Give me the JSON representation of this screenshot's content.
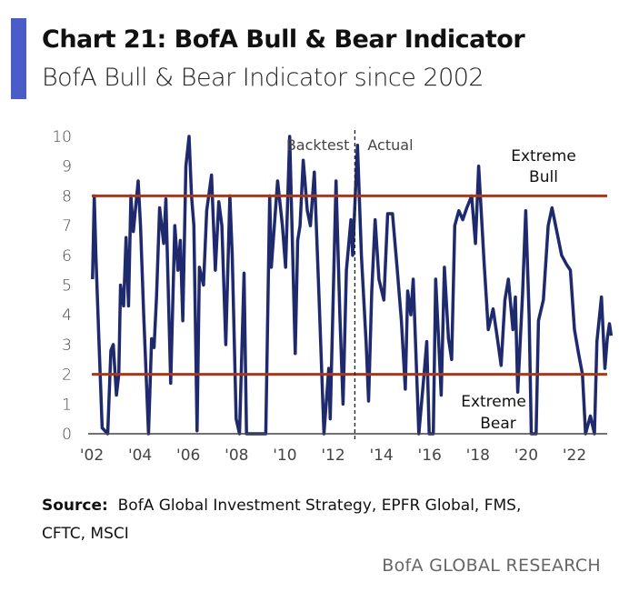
{
  "header": {
    "title": "Chart 21: BofA Bull & Bear Indicator",
    "subtitle": "BofA Bull & Bear Indicator since 2002"
  },
  "footer": {
    "source_label": "Source:",
    "source_text": "BofA Global Investment Strategy, EPFR Global, FMS, CFTC, MSCI",
    "brand": "BofA GLOBAL RESEARCH"
  },
  "chart_data": {
    "type": "line",
    "title": "",
    "xlabel": "",
    "ylabel": "",
    "ylim": [
      0,
      10
    ],
    "xlim": [
      2002,
      2023.6
    ],
    "yticks": [
      "0",
      "1",
      "2",
      "3",
      "4",
      "5",
      "6",
      "7",
      "8",
      "9",
      "10"
    ],
    "xticks": [
      {
        "value": 2002,
        "label": "'02"
      },
      {
        "value": 2004,
        "label": "'04"
      },
      {
        "value": 2006,
        "label": "'06"
      },
      {
        "value": 2008,
        "label": "'08"
      },
      {
        "value": 2010,
        "label": "'10"
      },
      {
        "value": 2012,
        "label": "'12"
      },
      {
        "value": 2014,
        "label": "'14"
      },
      {
        "value": 2016,
        "label": "'16"
      },
      {
        "value": 2018,
        "label": "'18"
      },
      {
        "value": 2020,
        "label": "'20"
      },
      {
        "value": 2022,
        "label": "'22"
      }
    ],
    "grid": false,
    "colors": {
      "series": "#1f2a6e",
      "thresholds": "#a8381c",
      "divider": "#222222"
    },
    "thresholds": [
      {
        "value": 8,
        "label_lines": [
          "Extreme",
          "Bull"
        ]
      },
      {
        "value": 2,
        "label_lines": [
          "Extreme",
          "Bear"
        ]
      }
    ],
    "divider": {
      "x": 2012.9,
      "left_label": "Backtest",
      "right_label": "Actual"
    },
    "series": [
      {
        "x": [
          2002.03,
          2002.1,
          2002.17,
          2002.3,
          2002.43,
          2002.66,
          2002.79,
          2002.89,
          2003.02,
          2003.12,
          2003.19,
          2003.32,
          2003.42,
          2003.52,
          2003.62,
          2003.72,
          2003.92,
          2004.02,
          2004.15,
          2004.35,
          2004.48,
          2004.58,
          2004.68,
          2004.81,
          2004.98,
          2005.07,
          2005.27,
          2005.44,
          2005.57,
          2005.67,
          2005.77,
          2005.9,
          2006.03,
          2006.13,
          2006.23,
          2006.36,
          2006.46,
          2006.63,
          2006.76,
          2006.96,
          2007.12,
          2007.26,
          2007.39,
          2007.55,
          2007.72,
          2007.82,
          2007.98,
          2008.12,
          2008.31,
          2008.41,
          2008.78,
          2009.21,
          2009.37,
          2009.44,
          2009.7,
          2009.9,
          2010.03,
          2010.2,
          2010.43,
          2010.53,
          2010.63,
          2010.76,
          2010.93,
          2011.06,
          2011.22,
          2011.42,
          2011.62,
          2011.82,
          2011.88,
          2012.12,
          2012.28,
          2012.41,
          2012.55,
          2012.74,
          2012.81,
          2013.01,
          2013.17,
          2013.37,
          2013.47,
          2013.6,
          2013.74,
          2013.9,
          2014.1,
          2014.26,
          2014.46,
          2014.66,
          2014.83,
          2014.99,
          2015.09,
          2015.22,
          2015.32,
          2015.55,
          2015.79,
          2015.88,
          2015.98,
          2016.15,
          2016.25,
          2016.38,
          2016.48,
          2016.61,
          2016.78,
          2016.91,
          2017.04,
          2017.21,
          2017.37,
          2017.54,
          2017.74,
          2017.9,
          2018.03,
          2018.26,
          2018.43,
          2018.63,
          2018.79,
          2018.96,
          2019.12,
          2019.26,
          2019.45,
          2019.55,
          2019.65,
          2019.85,
          2019.98,
          2020.12,
          2020.21,
          2020.41,
          2020.51,
          2020.71,
          2020.91,
          2021.07,
          2021.27,
          2021.47,
          2021.67,
          2021.83,
          2022.0,
          2022.17,
          2022.33,
          2022.46,
          2022.66,
          2022.83,
          2022.93,
          2023.12,
          2023.26,
          2023.36,
          2023.45,
          2023.52
        ],
        "values": [
          5.2,
          8.0,
          6.0,
          3.0,
          0.2,
          0,
          2.8,
          3.0,
          1.3,
          2.0,
          5.0,
          4.3,
          6.6,
          4.3,
          8.0,
          6.8,
          8.5,
          7.0,
          4.0,
          0,
          3.2,
          2.9,
          4.6,
          7.6,
          6.4,
          7.9,
          1.7,
          7.0,
          5.5,
          6.5,
          3.8,
          9.0,
          10.0,
          8.0,
          7.0,
          0.1,
          5.6,
          5.0,
          7.5,
          8.7,
          5.5,
          7.8,
          7.0,
          3.0,
          8.0,
          6.0,
          0.5,
          0,
          5.4,
          0,
          0,
          0,
          8.0,
          5.6,
          8.5,
          7.0,
          5.6,
          10.0,
          2.7,
          6.5,
          7.0,
          9.2,
          7.5,
          7.0,
          8.8,
          4.5,
          0,
          2.2,
          0.5,
          8.5,
          4.0,
          1.0,
          5.5,
          7.2,
          6.0,
          9.7,
          6.0,
          3.0,
          1.1,
          4.8,
          7.2,
          5.2,
          4.5,
          7.4,
          7.4,
          5.5,
          3.8,
          1.5,
          4.8,
          4.0,
          5.2,
          0,
          2.2,
          3.1,
          0,
          0,
          5.2,
          3.0,
          1.3,
          5.6,
          3.2,
          2.5,
          7.0,
          7.5,
          7.2,
          7.6,
          8.0,
          6.4,
          9.0,
          5.7,
          3.5,
          4.2,
          3.3,
          2.3,
          4.5,
          5.2,
          3.5,
          4.6,
          1.4,
          4.7,
          7.5,
          4.0,
          0,
          0,
          3.8,
          4.5,
          7.0,
          7.6,
          6.8,
          6.0,
          5.7,
          5.5,
          3.5,
          2.7,
          2.0,
          0,
          0.6,
          0,
          3.1,
          4.6,
          2.2,
          3.2,
          3.7,
          3.3
        ]
      }
    ]
  }
}
